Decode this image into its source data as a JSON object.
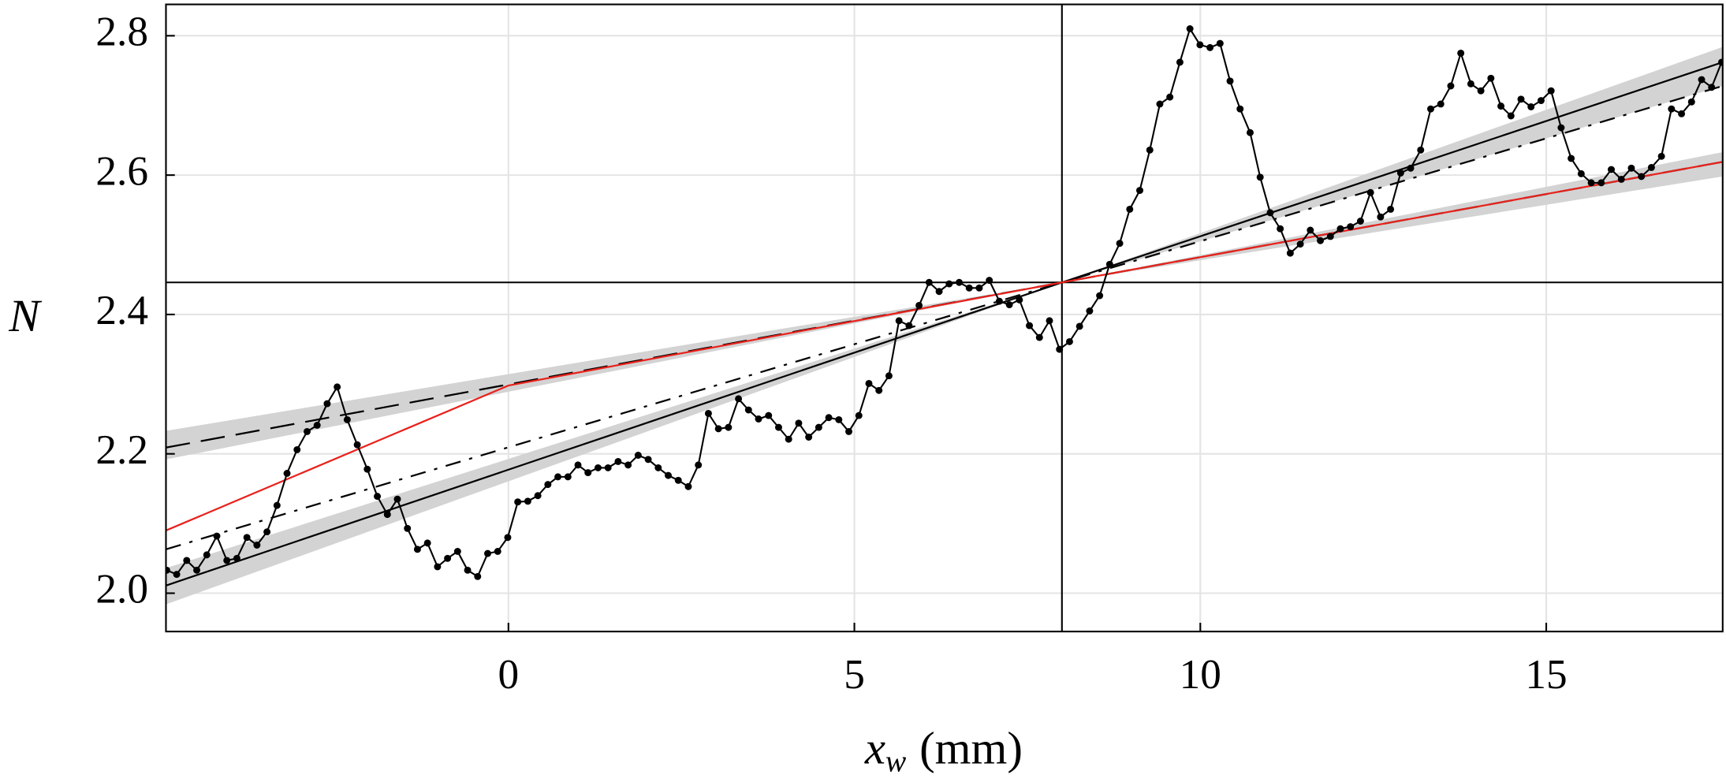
{
  "chart_data": {
    "type": "line",
    "ylabel": "N",
    "xlabel": {
      "var": "x",
      "sub": "w",
      "unit": "(mm)"
    },
    "xlim": [
      -4.95,
      17.55
    ],
    "ylim": [
      1.945,
      2.845
    ],
    "xticks": [
      0,
      5,
      10,
      15
    ],
    "yticks": [
      {
        "value": 2,
        "label": "2.0"
      },
      2.2,
      2.4,
      2.6,
      2.8
    ],
    "grid": true,
    "vline": 8,
    "hline": 2.446,
    "points": {
      "color": "#000000",
      "x": [
        -4.94,
        -4.795,
        -4.65,
        -4.505,
        -4.36,
        -4.215,
        -4.07,
        -3.925,
        -3.78,
        -3.635,
        -3.49,
        -3.345,
        -3.2,
        -3.055,
        -2.91,
        -2.765,
        -2.62,
        -2.475,
        -2.33,
        -2.185,
        -2.04,
        -1.895,
        -1.75,
        -1.605,
        -1.46,
        -1.315,
        -1.17,
        -1.025,
        -0.88,
        -0.735,
        -0.59,
        -0.445,
        -0.3,
        -0.155,
        -0.01,
        0.135,
        0.28,
        0.425,
        0.57,
        0.715,
        0.86,
        1.005,
        1.15,
        1.295,
        1.44,
        1.585,
        1.73,
        1.875,
        2.02,
        2.165,
        2.31,
        2.455,
        2.6,
        2.745,
        2.89,
        3.035,
        3.18,
        3.325,
        3.47,
        3.615,
        3.76,
        3.905,
        4.05,
        4.195,
        4.34,
        4.485,
        4.63,
        4.775,
        4.92,
        5.065,
        5.21,
        5.355,
        5.5,
        5.645,
        5.79,
        5.935,
        6.08,
        6.225,
        6.37,
        6.515,
        6.66,
        6.805,
        6.95,
        7.095,
        7.24,
        7.385,
        7.53,
        7.675,
        7.82,
        7.965,
        8.11,
        8.255,
        8.4,
        8.545,
        8.69,
        8.835,
        8.98,
        9.125,
        9.27,
        9.415,
        9.56,
        9.705,
        9.85,
        9.995,
        10.14,
        10.285,
        10.43,
        10.575,
        10.72,
        10.865,
        11.01,
        11.155,
        11.3,
        11.445,
        11.59,
        11.735,
        11.88,
        12.025,
        12.17,
        12.315,
        12.46,
        12.605,
        12.75,
        12.895,
        13.04,
        13.185,
        13.33,
        13.475,
        13.62,
        13.765,
        13.91,
        14.055,
        14.2,
        14.345,
        14.49,
        14.635,
        14.78,
        14.925,
        15.07,
        15.215,
        15.36,
        15.505,
        15.65,
        15.795,
        15.94,
        16.085,
        16.23,
        16.375,
        16.52,
        16.665,
        16.81,
        16.955,
        17.1,
        17.245,
        17.39,
        17.535
      ],
      "values": [
        2.033,
        2.027,
        2.047,
        2.033,
        2.055,
        2.082,
        2.047,
        2.05,
        2.08,
        2.069,
        2.088,
        2.126,
        2.172,
        2.206,
        2.232,
        2.241,
        2.272,
        2.296,
        2.249,
        2.213,
        2.178,
        2.139,
        2.113,
        2.135,
        2.093,
        2.063,
        2.072,
        2.038,
        2.05,
        2.06,
        2.033,
        2.024,
        2.057,
        2.06,
        2.08,
        2.131,
        2.132,
        2.14,
        2.156,
        2.167,
        2.167,
        2.184,
        2.173,
        2.18,
        2.18,
        2.189,
        2.184,
        2.198,
        2.192,
        2.18,
        2.169,
        2.162,
        2.153,
        2.184,
        2.258,
        2.236,
        2.238,
        2.279,
        2.263,
        2.25,
        2.255,
        2.238,
        2.221,
        2.244,
        2.224,
        2.238,
        2.252,
        2.249,
        2.232,
        2.255,
        2.301,
        2.291,
        2.312,
        2.391,
        2.384,
        2.413,
        2.446,
        2.433,
        2.444,
        2.446,
        2.438,
        2.438,
        2.449,
        2.419,
        2.414,
        2.421,
        2.384,
        2.367,
        2.391,
        2.35,
        2.361,
        2.383,
        2.405,
        2.427,
        2.472,
        2.502,
        2.551,
        2.578,
        2.636,
        2.702,
        2.712,
        2.762,
        2.81,
        2.787,
        2.783,
        2.789,
        2.735,
        2.695,
        2.661,
        2.597,
        2.546,
        2.523,
        2.488,
        2.501,
        2.521,
        2.506,
        2.512,
        2.523,
        2.526,
        2.534,
        2.575,
        2.54,
        2.551,
        2.603,
        2.61,
        2.636,
        2.695,
        2.702,
        2.728,
        2.775,
        2.731,
        2.721,
        2.739,
        2.699,
        2.685,
        2.709,
        2.698,
        2.707,
        2.721,
        2.668,
        2.624,
        2.602,
        2.589,
        2.589,
        2.608,
        2.594,
        2.61,
        2.598,
        2.611,
        2.627,
        2.695,
        2.688,
        2.705,
        2.737,
        2.726,
        2.762
      ]
    },
    "bands": [
      {
        "color": "#d3d3d3",
        "x": [
          -4.95,
          8,
          17.55
        ],
        "lower": [
          1.984,
          2.446,
          2.728
        ],
        "upper": [
          2.036,
          2.446,
          2.784
        ]
      },
      {
        "color": "#d3d3d3",
        "x": [
          -4.95,
          8,
          17.55
        ],
        "lower": [
          2.192,
          2.446,
          2.598
        ],
        "upper": [
          2.233,
          2.446,
          2.633
        ]
      }
    ],
    "fits": [
      {
        "color": "#000000",
        "dash": "none",
        "x": [
          -4.95,
          8,
          17.55
        ],
        "values": [
          2.011,
          2.446,
          2.762
        ]
      },
      {
        "color": "#000000",
        "dash": "14 8 3 8",
        "x": [
          -4.95,
          8,
          17.55
        ],
        "values": [
          2.063,
          2.446,
          2.728
        ]
      },
      {
        "color": "#000000",
        "dash": "22 10",
        "x": [
          -4.95,
          8,
          17.55
        ],
        "values": [
          2.209,
          2.446,
          2.619
        ]
      },
      {
        "color": "#e8221c",
        "dash": "none",
        "x": [
          -4.95,
          0,
          8,
          17.55
        ],
        "values": [
          2.09,
          2.298,
          2.446,
          2.619
        ]
      }
    ]
  }
}
